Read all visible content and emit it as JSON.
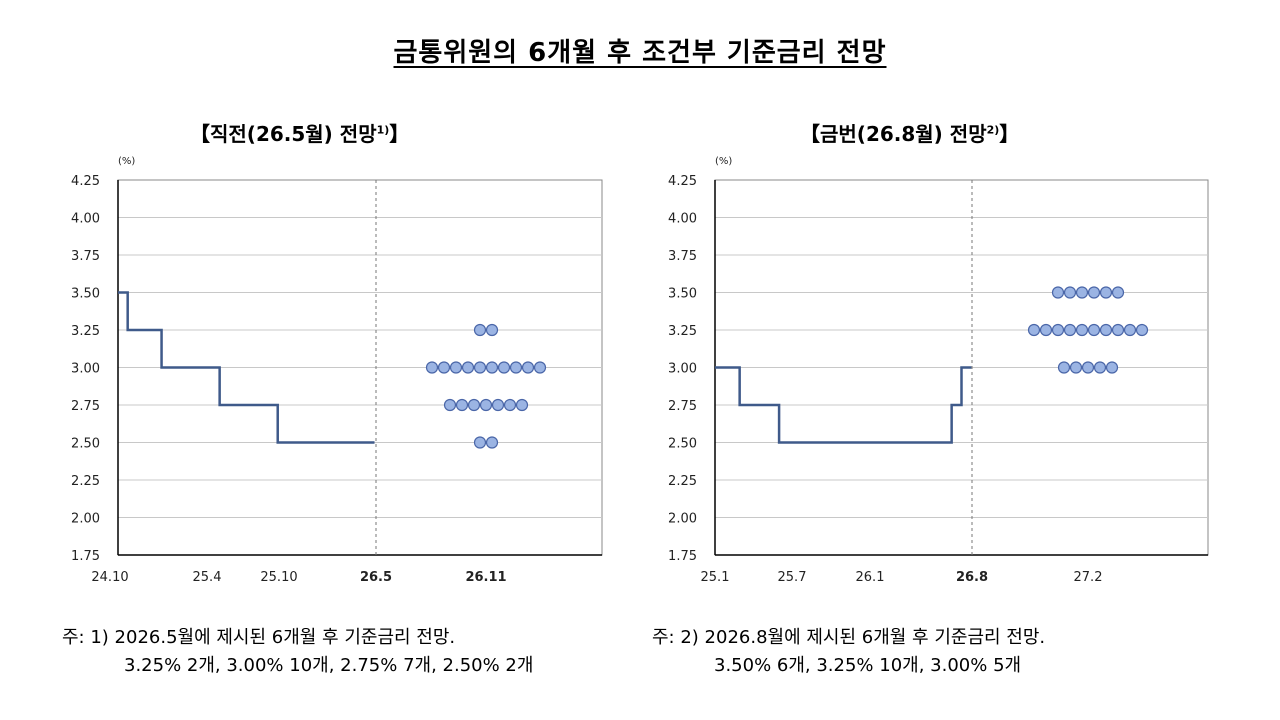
{
  "title": "금통위원의 6개월 후 조건부 기준금리 전망",
  "colors": {
    "line": "#3f5a8a",
    "dot_fill": "#9bb4e3",
    "dot_stroke": "#4a66a8",
    "grid": "#c8c8c8",
    "axis": "#000000"
  },
  "chart_data": [
    {
      "type": "step+dot",
      "title": "【직전(26.5월) 전망",
      "title_sup": "1)",
      "title_close": "】",
      "unit_label": "(%)",
      "ylim": [
        1.75,
        4.25
      ],
      "yticks": [
        "4.25",
        "4.00",
        "3.75",
        "3.50",
        "3.25",
        "3.00",
        "2.75",
        "2.50",
        "2.25",
        "2.00",
        "1.75"
      ],
      "xticks": [
        "24.10",
        "25.4",
        "25.10",
        "26.5",
        "26.11"
      ],
      "xticks_bold": [
        false,
        false,
        false,
        true,
        true
      ],
      "policy_rate_path": [
        {
          "from": 0,
          "to": 0.02,
          "rate": 3.5
        },
        {
          "from": 0.02,
          "to": 0.09,
          "rate": 3.25
        },
        {
          "from": 0.09,
          "to": 0.21,
          "rate": 3.0
        },
        {
          "from": 0.21,
          "to": 0.33,
          "rate": 2.75
        },
        {
          "from": 0.33,
          "to": 0.53,
          "rate": 2.5
        }
      ],
      "forecast_divider": "26.5",
      "dot_distribution": [
        {
          "rate": 3.25,
          "count": 2
        },
        {
          "rate": 3.0,
          "count": 10
        },
        {
          "rate": 2.75,
          "count": 7
        },
        {
          "rate": 2.5,
          "count": 2
        }
      ],
      "note_line1": "주: 1) 2026.5월에 제시된 6개월 후 기준금리 전망.",
      "note_line2": "3.25% 2개,  3.00% 10개,  2.75% 7개,  2.50% 2개"
    },
    {
      "type": "step+dot",
      "title": "【금번(26.8월) 전망",
      "title_sup": "2)",
      "title_close": "】",
      "unit_label": "(%)",
      "ylim": [
        1.75,
        4.25
      ],
      "yticks": [
        "4.25",
        "4.00",
        "3.75",
        "3.50",
        "3.25",
        "3.00",
        "2.75",
        "2.50",
        "2.25",
        "2.00",
        "1.75"
      ],
      "xticks": [
        "25.1",
        "25.7",
        "26.1",
        "26.8",
        "27.2"
      ],
      "xticks_bold": [
        false,
        false,
        false,
        true,
        false
      ],
      "policy_rate_path": [
        {
          "from": 0,
          "to": 0.05,
          "rate": 3.0
        },
        {
          "from": 0.05,
          "to": 0.13,
          "rate": 2.75
        },
        {
          "from": 0.13,
          "to": 0.48,
          "rate": 2.5
        },
        {
          "from": 0.48,
          "to": 0.5,
          "rate": 2.75
        },
        {
          "from": 0.5,
          "to": 0.52,
          "rate": 3.0
        }
      ],
      "forecast_divider": "26.8",
      "dot_distribution": [
        {
          "rate": 3.5,
          "count": 6
        },
        {
          "rate": 3.25,
          "count": 10
        },
        {
          "rate": 3.0,
          "count": 5
        }
      ],
      "note_line1": "주: 2) 2026.8월에 제시된 6개월 후 기준금리 전망.",
      "note_line2": "3.50%  6개,   3.25% 10개,  3.00% 5개"
    }
  ]
}
